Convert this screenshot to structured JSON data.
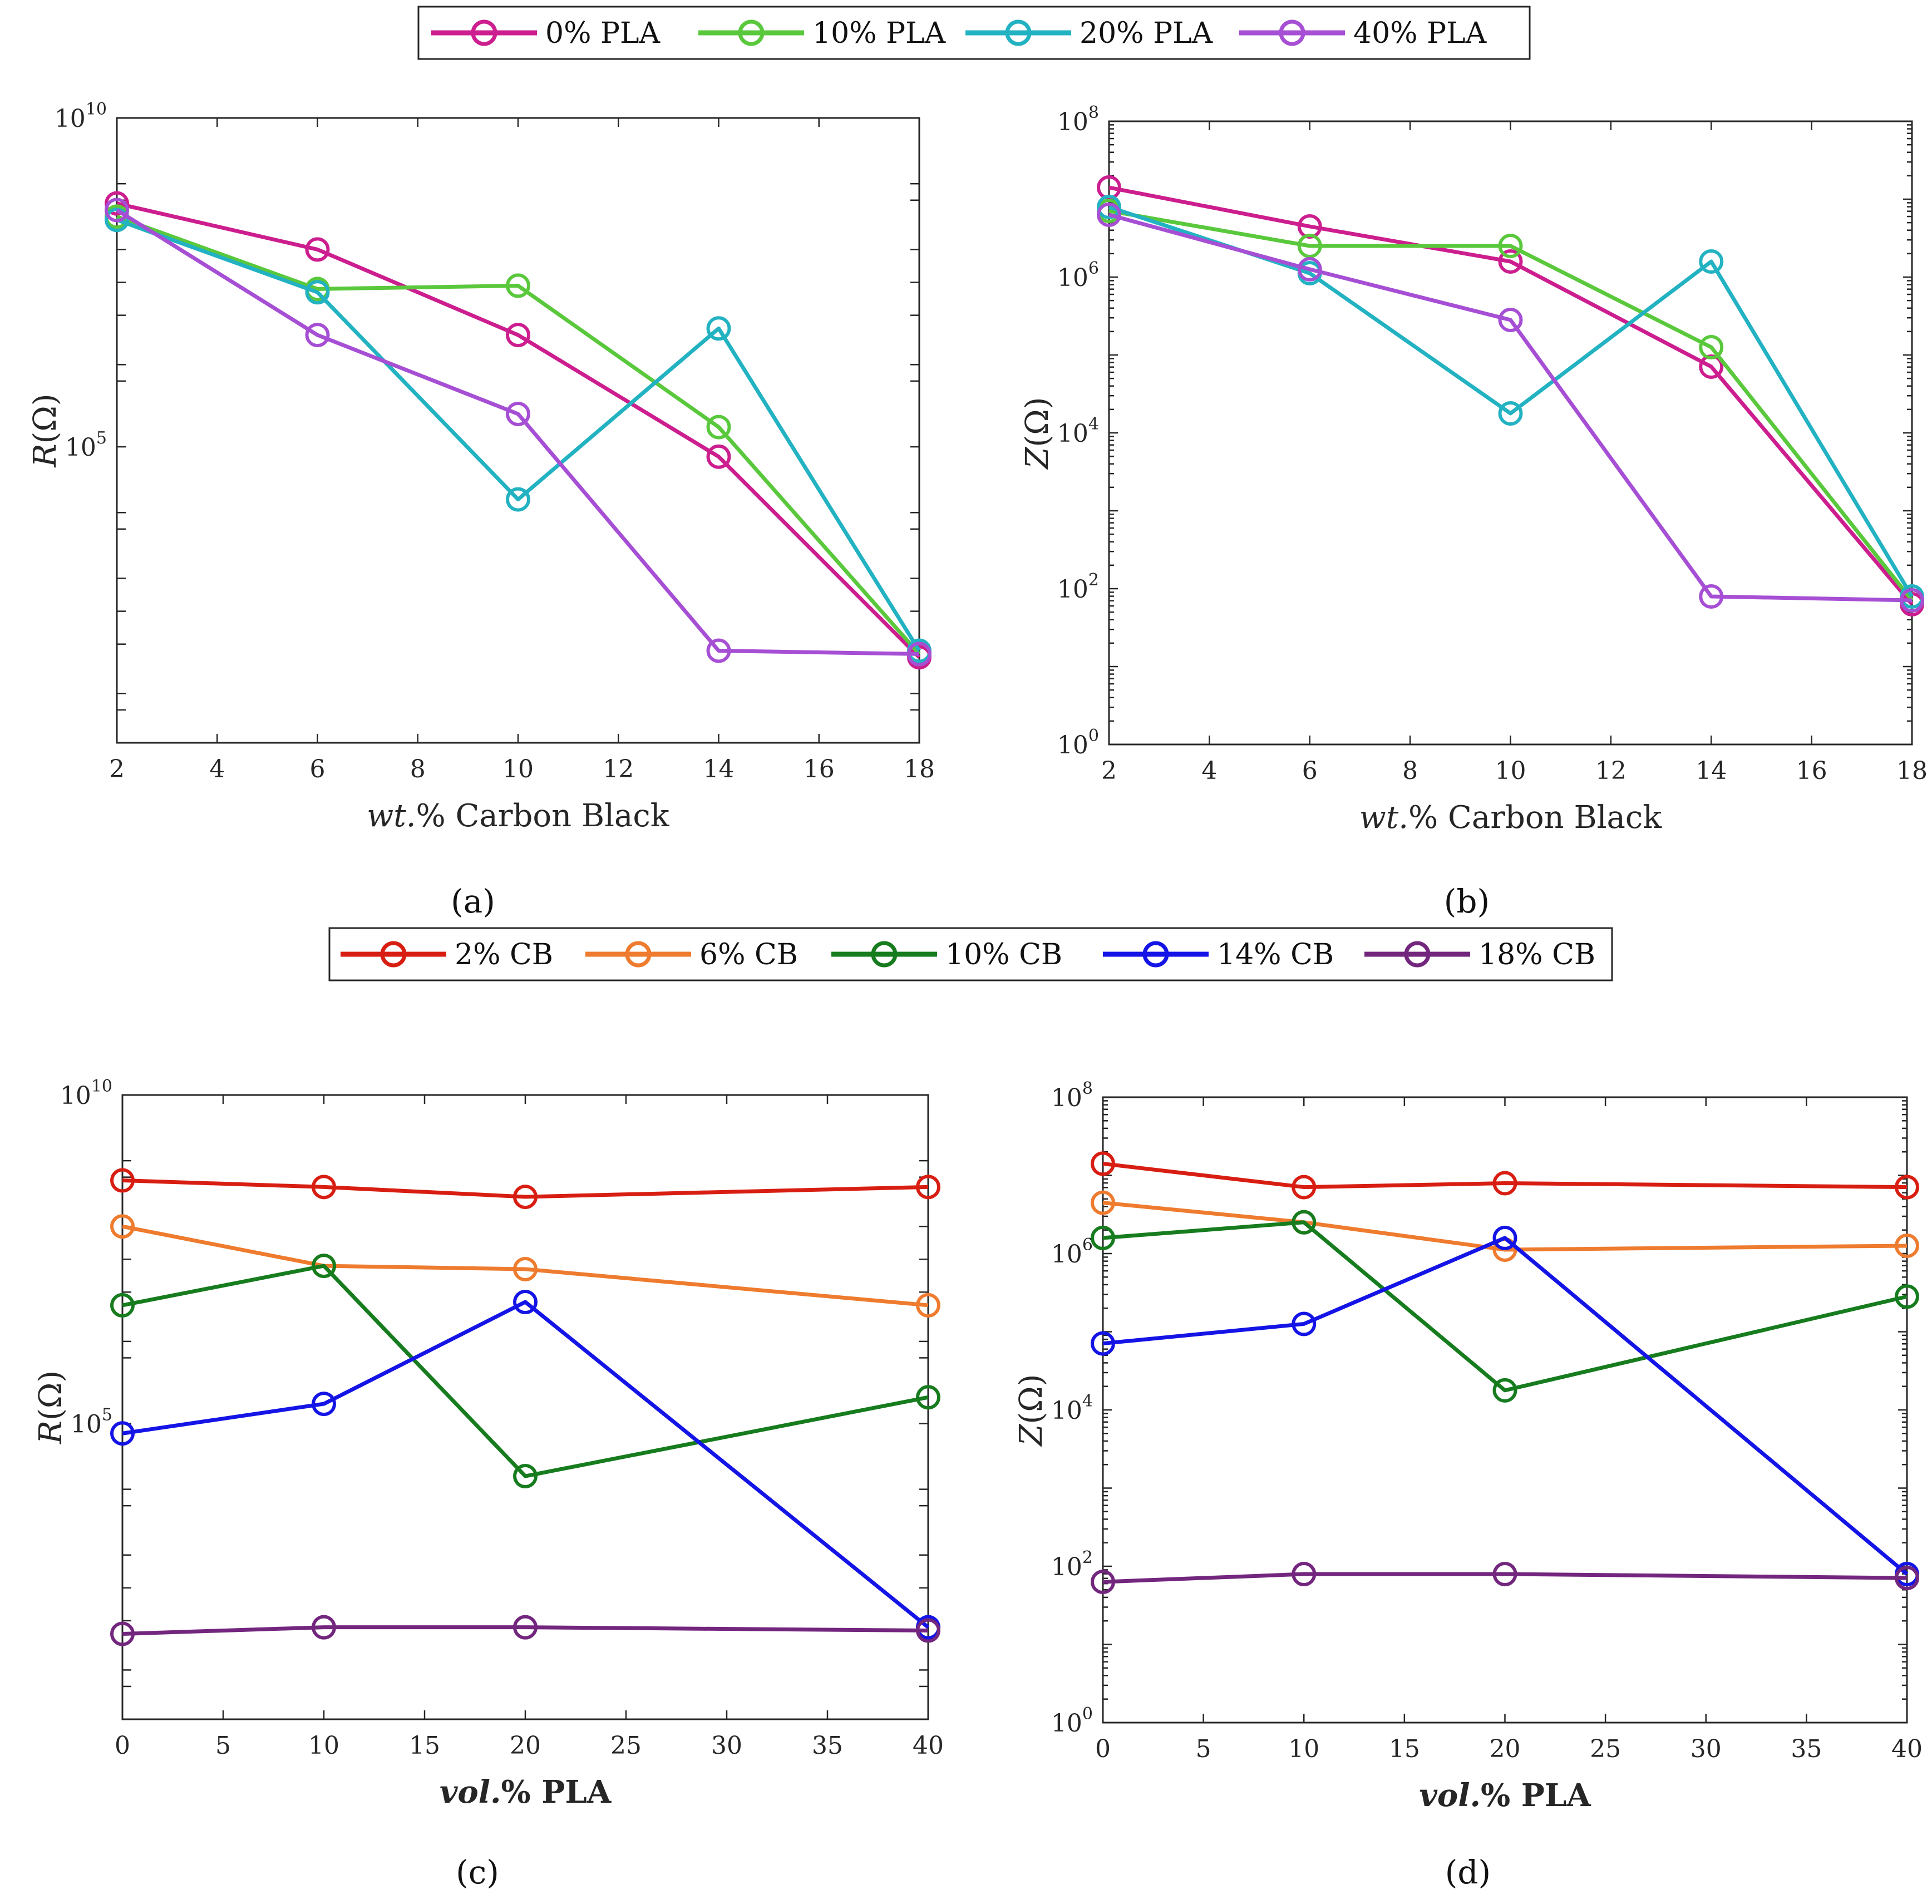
{
  "legend_top": {
    "entries": [
      {
        "label": "0% PLA",
        "color": "#cc1e8e"
      },
      {
        "label": "10% PLA",
        "color": "#5ac83c"
      },
      {
        "label": "20% PLA",
        "color": "#22b2c2"
      },
      {
        "label": "40% PLA",
        "color": "#a64fd4"
      }
    ]
  },
  "legend_bottom": {
    "entries": [
      {
        "label": "2% CB",
        "color": "#d81e12"
      },
      {
        "label": "6% CB",
        "color": "#ee7b2e"
      },
      {
        "label": "10% CB",
        "color": "#167c1e"
      },
      {
        "label": "14% CB",
        "color": "#1414e6"
      },
      {
        "label": "18% CB",
        "color": "#73267e"
      }
    ]
  },
  "panel_labels": {
    "a": "(a)",
    "b": "(b)",
    "c": "(c)",
    "d": "(d)"
  },
  "chart_data": [
    {
      "id": "a",
      "type": "line",
      "ylabel": "R(Ω)",
      "xlabel_italic": "wt.",
      "xlabel_rest": "% Carbon Black",
      "xscale": "linear",
      "yscale": "log",
      "xlim": [
        2,
        18
      ],
      "ylim_log10": [
        0.5,
        10
      ],
      "xticks": [
        2,
        4,
        6,
        8,
        10,
        12,
        14,
        16,
        18
      ],
      "yticks_log10": [
        5,
        10
      ],
      "x": [
        2,
        6,
        10,
        14,
        18
      ],
      "series": [
        {
          "name": "0% PLA",
          "color": "#cc1e8e",
          "log10_values": [
            8.7,
            8.0,
            6.7,
            4.85,
            1.8
          ]
        },
        {
          "name": "10% PLA",
          "color": "#5ac83c",
          "log10_values": [
            8.5,
            7.4,
            7.45,
            5.3,
            1.85
          ]
        },
        {
          "name": "20% PLA",
          "color": "#22b2c2",
          "log10_values": [
            8.45,
            7.35,
            4.2,
            6.8,
            1.9
          ]
        },
        {
          "name": "40% PLA",
          "color": "#a64fd4",
          "log10_values": [
            8.6,
            6.7,
            5.5,
            1.9,
            1.85
          ]
        }
      ]
    },
    {
      "id": "b",
      "type": "line",
      "ylabel": "Z(Ω)",
      "xlabel_italic": "wt.",
      "xlabel_rest": "% Carbon Black",
      "xscale": "linear",
      "yscale": "log",
      "xlim": [
        2,
        18
      ],
      "ylim_log10": [
        0,
        8
      ],
      "xticks": [
        2,
        4,
        6,
        8,
        10,
        12,
        14,
        16,
        18
      ],
      "yticks_log10": [
        0,
        2,
        4,
        6,
        8
      ],
      "x": [
        2,
        6,
        10,
        14,
        18
      ],
      "series": [
        {
          "name": "0% PLA",
          "color": "#cc1e8e",
          "log10_values": [
            7.15,
            6.65,
            6.2,
            4.85,
            1.8
          ]
        },
        {
          "name": "10% PLA",
          "color": "#5ac83c",
          "log10_values": [
            6.85,
            6.4,
            6.4,
            5.1,
            1.85
          ]
        },
        {
          "name": "20% PLA",
          "color": "#22b2c2",
          "log10_values": [
            6.9,
            6.05,
            4.25,
            6.2,
            1.9
          ]
        },
        {
          "name": "40% PLA",
          "color": "#a64fd4",
          "log10_values": [
            6.8,
            6.1,
            5.45,
            1.9,
            1.85
          ]
        }
      ]
    },
    {
      "id": "c",
      "type": "line",
      "ylabel": "R(Ω)",
      "xlabel_italic": "vol.",
      "xlabel_rest": "% PLA",
      "xlabel_bold": true,
      "xscale": "linear",
      "yscale": "log",
      "xlim": [
        0,
        40
      ],
      "ylim_log10": [
        0.5,
        10
      ],
      "xticks": [
        0,
        5,
        10,
        15,
        20,
        25,
        30,
        35,
        40
      ],
      "yticks_log10": [
        5,
        10
      ],
      "x": [
        0,
        10,
        20,
        40
      ],
      "series": [
        {
          "name": "2% CB",
          "color": "#d81e12",
          "log10_values": [
            8.7,
            8.6,
            8.45,
            8.6
          ]
        },
        {
          "name": "6% CB",
          "color": "#ee7b2e",
          "log10_values": [
            8.0,
            7.4,
            7.35,
            6.8
          ]
        },
        {
          "name": "10% CB",
          "color": "#167c1e",
          "log10_values": [
            6.8,
            7.4,
            4.2,
            5.4
          ]
        },
        {
          "name": "14% CB",
          "color": "#1414e6",
          "log10_values": [
            4.85,
            5.3,
            6.85,
            1.9
          ]
        },
        {
          "name": "18% CB",
          "color": "#73267e",
          "log10_values": [
            1.8,
            1.9,
            1.9,
            1.85
          ]
        }
      ]
    },
    {
      "id": "d",
      "type": "line",
      "ylabel": "Z(Ω)",
      "xlabel_italic": "vol.",
      "xlabel_rest": "% PLA",
      "xlabel_bold": true,
      "xscale": "linear",
      "yscale": "log",
      "xlim": [
        0,
        40
      ],
      "ylim_log10": [
        0,
        8
      ],
      "xticks": [
        0,
        5,
        10,
        15,
        20,
        25,
        30,
        35,
        40
      ],
      "yticks_log10": [
        0,
        2,
        4,
        6,
        8
      ],
      "x": [
        0,
        10,
        20,
        40
      ],
      "series": [
        {
          "name": "2% CB",
          "color": "#d81e12",
          "log10_values": [
            7.15,
            6.85,
            6.9,
            6.85
          ]
        },
        {
          "name": "6% CB",
          "color": "#ee7b2e",
          "log10_values": [
            6.65,
            6.4,
            6.05,
            6.1
          ]
        },
        {
          "name": "10% CB",
          "color": "#167c1e",
          "log10_values": [
            6.2,
            6.4,
            4.25,
            5.45
          ]
        },
        {
          "name": "14% CB",
          "color": "#1414e6",
          "log10_values": [
            4.85,
            5.1,
            6.2,
            1.9
          ]
        },
        {
          "name": "18% CB",
          "color": "#73267e",
          "log10_values": [
            1.8,
            1.9,
            1.9,
            1.85
          ]
        }
      ]
    }
  ]
}
